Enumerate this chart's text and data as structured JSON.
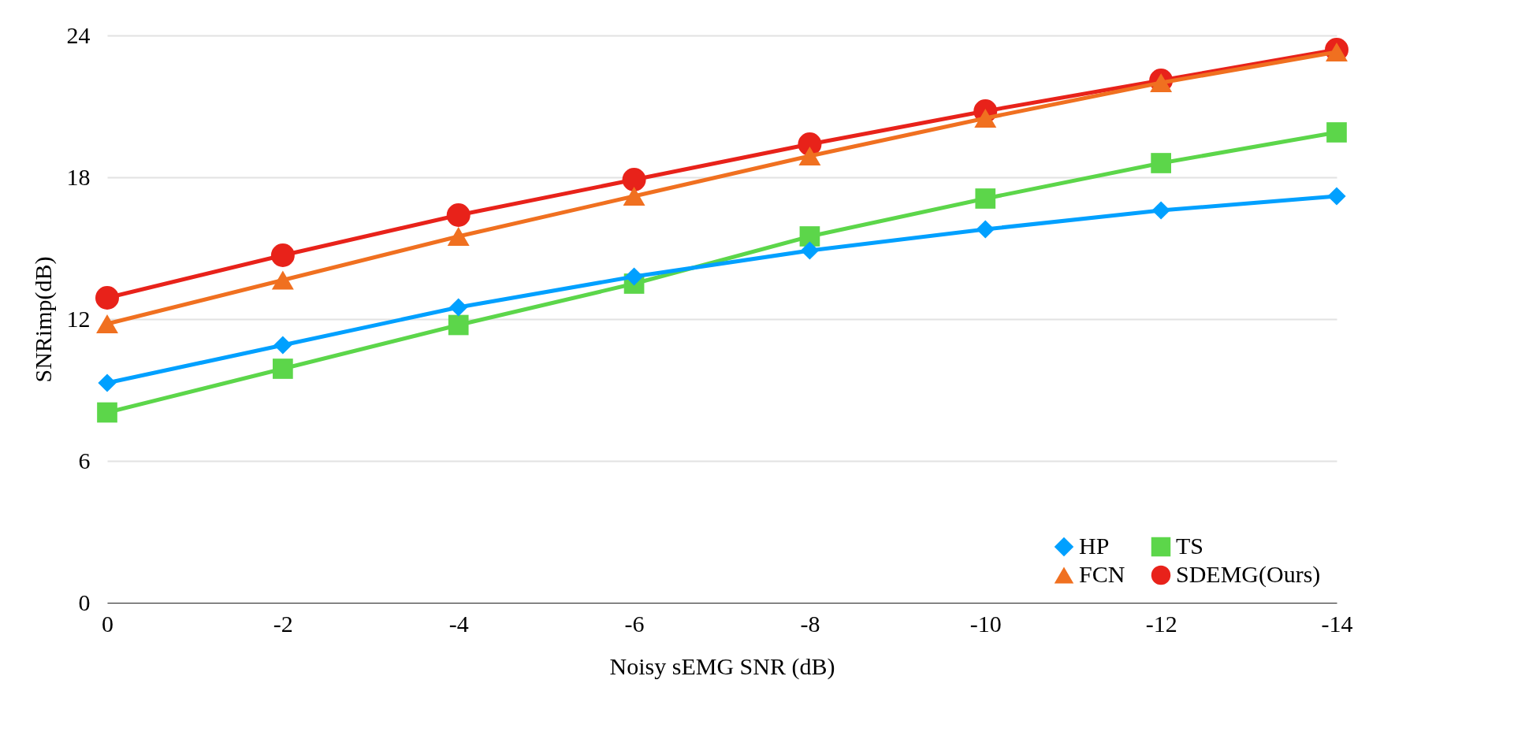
{
  "chart_data": {
    "type": "line",
    "xlabel": "Noisy sEMG SNR (dB)",
    "ylabel": "SNRimp(dB)",
    "categories": [
      "0",
      "-2",
      "-4",
      "-6",
      "-8",
      "-10",
      "-12",
      "-14"
    ],
    "series": [
      {
        "name": "SDEMG(Ours)",
        "color": "#e8221a",
        "marker": "circle",
        "values": [
          12.9,
          14.7,
          16.4,
          17.9,
          19.4,
          20.8,
          22.1,
          23.4
        ]
      },
      {
        "name": "FCN",
        "color": "#f07020",
        "marker": "triangle",
        "values": [
          11.8,
          13.65,
          15.5,
          17.2,
          18.9,
          20.5,
          22.0,
          23.3
        ]
      },
      {
        "name": "TS",
        "color": "#5cd64a",
        "marker": "square",
        "values": [
          8.05,
          9.9,
          11.75,
          13.5,
          15.5,
          17.1,
          18.6,
          19.9
        ]
      },
      {
        "name": "HP",
        "color": "#00a0ff",
        "marker": "diamond",
        "values": [
          9.3,
          10.9,
          12.5,
          13.8,
          14.9,
          15.8,
          16.6,
          17.2
        ]
      }
    ],
    "ylim": [
      0,
      24
    ],
    "yticks": [
      0,
      6,
      12,
      18,
      24
    ],
    "grid": "y",
    "legend": "bottom right",
    "line_style": "solid"
  }
}
